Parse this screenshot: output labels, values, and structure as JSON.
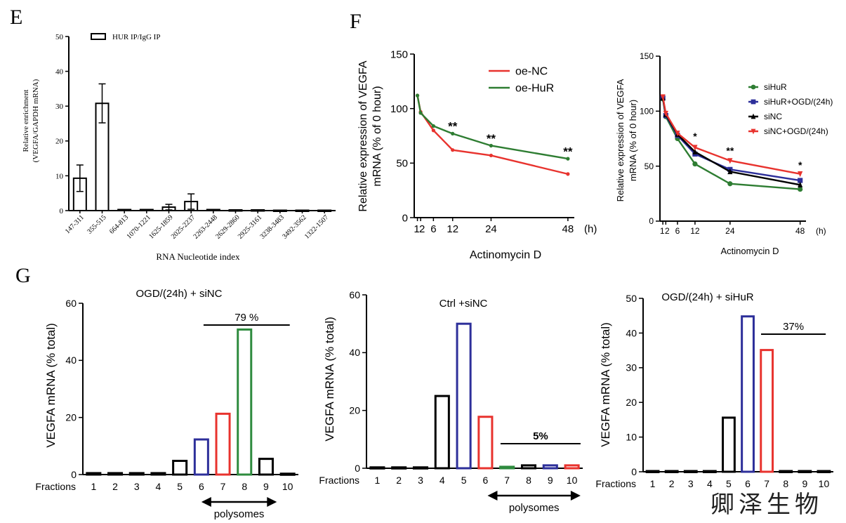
{
  "panels": {
    "E": "E",
    "F": "F",
    "G": "G"
  },
  "watermark": "卿泽生物",
  "chart_data": [
    {
      "id": "E",
      "type": "bar",
      "title": "",
      "legend": "HUR IP/IgG IP",
      "ylabel_line1": "Relative enrichment",
      "ylabel_line2": "(VEGFA/GAPDH mRNA)",
      "xlabel": "RNA Nucleotide index",
      "ylim": [
        0,
        50
      ],
      "yticks": [
        "0",
        "10",
        "20",
        "30",
        "40",
        "50"
      ],
      "categories": [
        "147-311",
        "355-515",
        "664-813",
        "1070-1221",
        "1625-1859",
        "2025-2237",
        "2263-2448",
        "2629-2860",
        "2925-3161",
        "3238-3483",
        "3492-3562",
        "1322-1507"
      ],
      "values": [
        9.3,
        30.8,
        0.3,
        0.3,
        1.0,
        2.6,
        0.3,
        0.2,
        0.2,
        0.1,
        0.1,
        0.1
      ],
      "errors": [
        3.8,
        5.6,
        0.15,
        0.15,
        0.8,
        2.2,
        0.15,
        0.1,
        0.1,
        0.05,
        0.05,
        0.05
      ]
    },
    {
      "id": "F1",
      "type": "line",
      "ylabel_line1": "Relative expression of VEGFA",
      "ylabel_line2": "mRNA (% of 0 hour)",
      "xlabel": "Actinomycin D",
      "xunit": "(h)",
      "ylim": [
        0,
        150
      ],
      "yticks": [
        "0",
        "50",
        "100",
        "150"
      ],
      "x": [
        1,
        2,
        6,
        12,
        24,
        48
      ],
      "xticklabels": [
        "1",
        "2",
        "6",
        "12",
        "24",
        "48"
      ],
      "series": [
        {
          "name": "oe-NC",
          "color": "#e8332e",
          "values": [
            112,
            97,
            80,
            62,
            57,
            40
          ]
        },
        {
          "name": "oe-HuR",
          "color": "#2e7d32",
          "values": [
            112,
            96,
            84,
            77,
            66,
            54
          ]
        }
      ],
      "annotations": [
        {
          "x": 12,
          "y": 80,
          "text": "**"
        },
        {
          "x": 24,
          "y": 69,
          "text": "**"
        },
        {
          "x": 48,
          "y": 57,
          "text": "**"
        }
      ]
    },
    {
      "id": "F2",
      "type": "line",
      "ylabel_line1": "Relative expression of VEGFA",
      "ylabel_line2": "mRNA (% of 0 hour)",
      "xlabel": "Actinomycin D",
      "xunit": "(h)",
      "ylim": [
        0,
        150
      ],
      "yticks": [
        "0",
        "50",
        "100",
        "150"
      ],
      "x": [
        1,
        2,
        6,
        12,
        24,
        48
      ],
      "xticklabels": [
        "1",
        "2",
        "6",
        "12",
        "24",
        "48"
      ],
      "series": [
        {
          "name": "siHuR",
          "color": "#2e7d32",
          "marker": "circle",
          "values": [
            111,
            95,
            75,
            52,
            34,
            29
          ]
        },
        {
          "name": "siHuR+OGD/(24h)",
          "color": "#2d2f9a",
          "marker": "square",
          "values": [
            112,
            96,
            78,
            61,
            47,
            37
          ]
        },
        {
          "name": "siNC",
          "color": "#000000",
          "marker": "triangle",
          "values": [
            112,
            97,
            79,
            63,
            45,
            33
          ]
        },
        {
          "name": "siNC+OGD/(24h)",
          "color": "#e8332e",
          "marker": "triangle-down",
          "values": [
            113,
            98,
            80,
            67,
            55,
            43
          ]
        }
      ],
      "annotations": [
        {
          "x": 12,
          "y": 74,
          "text": "*"
        },
        {
          "x": 24,
          "y": 61,
          "text": "**"
        },
        {
          "x": 48,
          "y": 48,
          "text": "*"
        }
      ]
    },
    {
      "id": "G1",
      "type": "bar",
      "title": "OGD/(24h) + siNC",
      "ylabel": "VEGFA mRNA (% total)",
      "xlabel_prefix": "Fractions",
      "ylim": [
        0,
        60
      ],
      "yticks": [
        "0",
        "20",
        "40",
        "60"
      ],
      "categories": [
        "1",
        "2",
        "3",
        "4",
        "5",
        "6",
        "7",
        "8",
        "9",
        "10"
      ],
      "values": [
        0.5,
        0.5,
        0.5,
        0.5,
        4.8,
        12.3,
        21.3,
        50.8,
        5.5,
        0.3
      ],
      "colors": [
        "#000",
        "#000",
        "#000",
        "#000",
        "#000",
        "#2d2f9a",
        "#e8332e",
        "#2e8b3e",
        "#000",
        "#000"
      ],
      "bracket_label": "79 %",
      "polysome_label": "polysomes"
    },
    {
      "id": "G2",
      "type": "bar",
      "title": "Ctrl +siNC",
      "ylabel": "VEGFA mRNA (% total)",
      "xlabel_prefix": "Fractions",
      "ylim": [
        0,
        60
      ],
      "yticks": [
        "0",
        "20",
        "40",
        "60"
      ],
      "categories": [
        "1",
        "2",
        "3",
        "4",
        "5",
        "6",
        "7",
        "8",
        "9",
        "10"
      ],
      "values": [
        0.3,
        0.3,
        0.3,
        25,
        50,
        17.8,
        0.5,
        1.0,
        1.0,
        1.0
      ],
      "colors": [
        "#000",
        "#000",
        "#000",
        "#000",
        "#2d2f9a",
        "#e8332e",
        "#2e8b3e",
        "#000",
        "#2d2f9a",
        "#e8332e"
      ],
      "bracket_label": "5%",
      "polysome_label": "polysomes"
    },
    {
      "id": "G3",
      "type": "bar",
      "title": "OGD/(24h) + siHuR",
      "ylabel": "VEGFA mRNA (% total)",
      "xlabel_prefix": "Fractions",
      "ylim": [
        0,
        50
      ],
      "yticks": [
        "0",
        "10",
        "20",
        "30",
        "40",
        "50"
      ],
      "categories": [
        "1",
        "2",
        "3",
        "4",
        "5",
        "6",
        "7",
        "8",
        "9",
        "10"
      ],
      "values": [
        0.2,
        0.2,
        0.2,
        0.2,
        15.6,
        44.8,
        35.1,
        0.2,
        0.2,
        0.2
      ],
      "colors": [
        "#000",
        "#000",
        "#000",
        "#000",
        "#000",
        "#2d2f9a",
        "#e8332e",
        "#000",
        "#000",
        "#000"
      ],
      "bracket_label": "37%",
      "polysome_label": ""
    }
  ]
}
